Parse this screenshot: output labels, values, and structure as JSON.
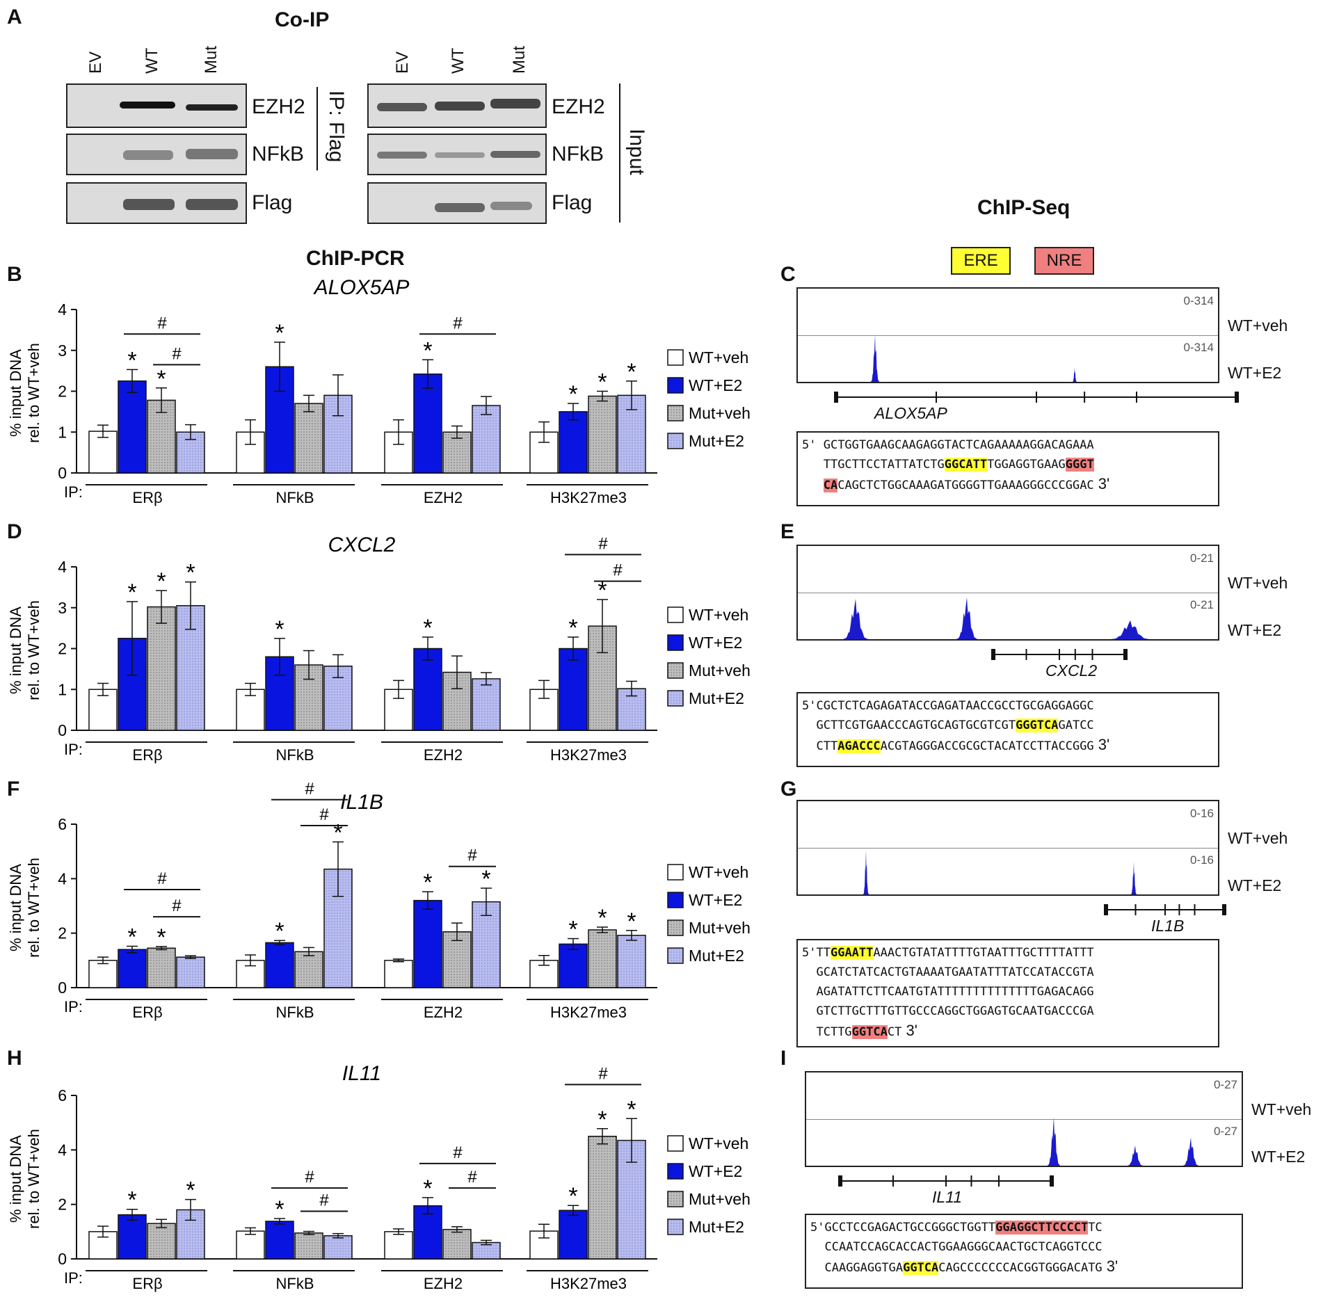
{
  "panel_letters": [
    "A",
    "B",
    "C",
    "D",
    "E",
    "F",
    "G",
    "H",
    "I"
  ],
  "coip": {
    "title": "Co-IP",
    "lanes": [
      "EV",
      "WT",
      "Mut"
    ],
    "proteins": [
      "EZH2",
      "NFkB",
      "Flag"
    ],
    "ip_label": "IP: Flag",
    "input_label": "Input"
  },
  "chip_pcr_title": "ChIP-PCR",
  "chip_seq_title": "ChIP-Seq",
  "motif_key": {
    "ere": "ERE",
    "nre": "NRE"
  },
  "colors": {
    "wt_veh": "#ffffff",
    "wt_e2": "#0a14e0",
    "mut_veh": "#bdbdbd",
    "mut_e2": "#b8bcee",
    "peak": "#1a1acc",
    "ere": "#ffff33",
    "nre": "#f08080"
  },
  "legend": [
    "WT+veh",
    "WT+E2",
    "Mut+veh",
    "Mut+E2"
  ],
  "track_labels": {
    "veh": "WT+veh",
    "e2": "WT+E2"
  },
  "chart_data": [
    {
      "type": "bar",
      "gene": "ALOX5AP",
      "ylabel_1": "% input DNA",
      "ylabel_2": "rel. to WT+veh",
      "ylim": [
        0,
        4
      ],
      "yticks": [
        "0",
        "1",
        "2",
        "3",
        "4"
      ],
      "ip_prefix": "IP:",
      "categories": [
        "ERβ",
        "NFkB",
        "EZH2",
        "H3K27me3"
      ],
      "series": [
        {
          "name": "WT+veh",
          "values": [
            1.02,
            1.0,
            1.0,
            1.0
          ],
          "err": [
            0.15,
            0.3,
            0.3,
            0.25
          ]
        },
        {
          "name": "WT+E2",
          "values": [
            2.25,
            2.6,
            2.42,
            1.5
          ],
          "err": [
            0.28,
            0.6,
            0.35,
            0.2
          ]
        },
        {
          "name": "Mut+veh",
          "values": [
            1.78,
            1.7,
            1.0,
            1.88
          ],
          "err": [
            0.3,
            0.2,
            0.15,
            0.12
          ]
        },
        {
          "name": "Mut+E2",
          "values": [
            1.0,
            1.9,
            1.65,
            1.9
          ],
          "err": [
            0.18,
            0.5,
            0.22,
            0.35
          ]
        }
      ],
      "stars": [
        [
          0,
          1
        ],
        [
          0,
          2
        ],
        [
          1,
          1
        ],
        [
          2,
          1
        ],
        [
          3,
          1
        ],
        [
          3,
          2
        ],
        [
          3,
          3
        ]
      ],
      "hashes": [
        {
          "g": 0,
          "a": 1,
          "b": 3,
          "v": 3.4
        },
        {
          "g": 0,
          "a": 2,
          "b": 3,
          "v": 2.65
        },
        {
          "g": 2,
          "a": 1,
          "b": 3,
          "v": 3.4
        }
      ],
      "star_sym": "*",
      "hash_sym": "#"
    },
    {
      "type": "bar",
      "gene": "CXCL2",
      "ylabel_1": "% input DNA",
      "ylabel_2": "rel. to WT+veh",
      "ylim": [
        0,
        4
      ],
      "yticks": [
        "0",
        "1",
        "2",
        "3",
        "4"
      ],
      "ip_prefix": "IP:",
      "categories": [
        "ERβ",
        "NFkB",
        "EZH2",
        "H3K27me3"
      ],
      "series": [
        {
          "name": "WT+veh",
          "values": [
            1.0,
            1.0,
            1.0,
            1.0
          ],
          "err": [
            0.15,
            0.15,
            0.22,
            0.22
          ]
        },
        {
          "name": "WT+E2",
          "values": [
            2.25,
            1.8,
            2.0,
            2.0
          ],
          "err": [
            0.9,
            0.45,
            0.28,
            0.28
          ]
        },
        {
          "name": "Mut+veh",
          "values": [
            3.02,
            1.6,
            1.42,
            2.55
          ],
          "err": [
            0.4,
            0.35,
            0.4,
            0.65
          ]
        },
        {
          "name": "Mut+E2",
          "values": [
            3.05,
            1.57,
            1.26,
            1.02
          ],
          "err": [
            0.58,
            0.28,
            0.15,
            0.18
          ]
        }
      ],
      "stars": [
        [
          0,
          1
        ],
        [
          0,
          2
        ],
        [
          0,
          3
        ],
        [
          1,
          1
        ],
        [
          2,
          1
        ],
        [
          3,
          1
        ],
        [
          3,
          2
        ]
      ],
      "hashes": [
        {
          "g": 3,
          "a": 1,
          "b": 3,
          "v": 4.3
        },
        {
          "g": 3,
          "a": 2,
          "b": 3,
          "v": 3.65
        }
      ],
      "star_sym": "*",
      "hash_sym": "#"
    },
    {
      "type": "bar",
      "gene": "IL1B",
      "ylabel_1": "% input DNA",
      "ylabel_2": "rel. to WT+veh",
      "ylim": [
        0,
        6
      ],
      "yticks": [
        "0",
        "2",
        "4",
        "6"
      ],
      "ip_prefix": "IP:",
      "categories": [
        "ERβ",
        "NFkB",
        "EZH2",
        "H3K27me3"
      ],
      "series": [
        {
          "name": "WT+veh",
          "values": [
            1.0,
            1.0,
            1.0,
            1.0
          ],
          "err": [
            0.12,
            0.2,
            0.05,
            0.18
          ]
        },
        {
          "name": "WT+E2",
          "values": [
            1.4,
            1.65,
            3.2,
            1.6
          ],
          "err": [
            0.12,
            0.08,
            0.32,
            0.2
          ]
        },
        {
          "name": "Mut+veh",
          "values": [
            1.45,
            1.32,
            2.05,
            2.12
          ],
          "err": [
            0.06,
            0.15,
            0.32,
            0.1
          ]
        },
        {
          "name": "Mut+E2",
          "values": [
            1.12,
            4.35,
            3.15,
            1.92
          ],
          "err": [
            0.05,
            1.0,
            0.5,
            0.18
          ]
        }
      ],
      "stars": [
        [
          0,
          1
        ],
        [
          0,
          2
        ],
        [
          1,
          1
        ],
        [
          1,
          3
        ],
        [
          2,
          1
        ],
        [
          2,
          3
        ],
        [
          3,
          1
        ],
        [
          3,
          2
        ],
        [
          3,
          3
        ]
      ],
      "hashes": [
        {
          "g": 0,
          "a": 1,
          "b": 3,
          "v": 3.6
        },
        {
          "g": 0,
          "a": 2,
          "b": 3,
          "v": 2.6
        },
        {
          "g": 1,
          "a": 1,
          "b": 3,
          "v": 6.9
        },
        {
          "g": 1,
          "a": 2,
          "b": 3,
          "v": 5.95
        },
        {
          "g": 2,
          "a": 2,
          "b": 3,
          "v": 4.45
        }
      ],
      "star_sym": "*",
      "hash_sym": "#"
    },
    {
      "type": "bar",
      "gene": "IL11",
      "ylabel_1": "% input DNA",
      "ylabel_2": "rel. to WT+veh",
      "ylim": [
        0,
        6
      ],
      "yticks": [
        "0",
        "2",
        "4",
        "6"
      ],
      "ip_prefix": "IP:",
      "categories": [
        "ERβ",
        "NFkB",
        "EZH2",
        "H3K27me3"
      ],
      "series": [
        {
          "name": "WT+veh",
          "values": [
            1.0,
            1.02,
            1.0,
            1.02
          ],
          "err": [
            0.2,
            0.12,
            0.1,
            0.25
          ]
        },
        {
          "name": "WT+E2",
          "values": [
            1.62,
            1.38,
            1.95,
            1.78
          ],
          "err": [
            0.2,
            0.1,
            0.3,
            0.18
          ]
        },
        {
          "name": "Mut+veh",
          "values": [
            1.3,
            0.95,
            1.08,
            4.5
          ],
          "err": [
            0.15,
            0.06,
            0.1,
            0.28
          ]
        },
        {
          "name": "Mut+E2",
          "values": [
            1.8,
            0.85,
            0.6,
            4.35
          ],
          "err": [
            0.38,
            0.08,
            0.08,
            0.8
          ]
        }
      ],
      "stars": [
        [
          0,
          1
        ],
        [
          0,
          3
        ],
        [
          1,
          1
        ],
        [
          2,
          1
        ],
        [
          3,
          1
        ],
        [
          3,
          2
        ],
        [
          3,
          3
        ]
      ],
      "hashes": [
        {
          "g": 1,
          "a": 1,
          "b": 3,
          "v": 2.6
        },
        {
          "g": 1,
          "a": 2,
          "b": 3,
          "v": 1.75
        },
        {
          "g": 2,
          "a": 1,
          "b": 3,
          "v": 3.5
        },
        {
          "g": 2,
          "a": 2,
          "b": 3,
          "v": 2.6
        },
        {
          "g": 3,
          "a": 1,
          "b": 3,
          "v": 6.4
        }
      ],
      "star_sym": "*",
      "hash_sym": "#"
    }
  ],
  "chipseq": [
    {
      "range": "0-314",
      "gene": "ALOX5AP",
      "seq": [
        [
          [
            "5' ",
            ""
          ],
          [
            "GCTGGTGAAGCAAGAGGTACTCAGAAAAAGGACAGAAA",
            ""
          ]
        ],
        [
          [
            "   ",
            ""
          ],
          [
            "TTGCTTCCTATTATCTG",
            ""
          ],
          [
            "GGCATT",
            "ere"
          ],
          [
            "TGGAGGTGAAG",
            ""
          ],
          [
            "GGGT",
            "nre"
          ]
        ],
        [
          [
            "   ",
            ""
          ],
          [
            "CA",
            "nre"
          ],
          [
            "CAGCTCTGGCAAAGATGGGGTTGAAAGGGCCCGGAC",
            ""
          ],
          [
            " 3'",
            "end"
          ]
        ]
      ]
    },
    {
      "range": "0-21",
      "gene": "CXCL2",
      "seq": [
        [
          [
            "5'",
            ""
          ],
          [
            "CGCTCTCAGAGATACCGAGATAACCGCCTGCGAGGAGGC",
            ""
          ]
        ],
        [
          [
            "  ",
            ""
          ],
          [
            "GCTTCGTGAACCCAGTGCAGTGCGTCGT",
            ""
          ],
          [
            "GGGTCA",
            "ere"
          ],
          [
            "GATCC",
            ""
          ]
        ],
        [
          [
            "  ",
            ""
          ],
          [
            "CTT",
            ""
          ],
          [
            "AGACCC",
            "ere"
          ],
          [
            "ACGTAGGGACCGCGCTACATCCTTACCGGG",
            ""
          ],
          [
            " 3'",
            "end"
          ]
        ]
      ]
    },
    {
      "range": "0-16",
      "gene": "IL1B",
      "seq": [
        [
          [
            "5'",
            ""
          ],
          [
            "TT",
            ""
          ],
          [
            "GGAATT",
            "ere"
          ],
          [
            "AAACTGTATATTTTGTAATTTGCTTTTATTT",
            ""
          ]
        ],
        [
          [
            "  ",
            ""
          ],
          [
            "GCATCTATCACTGTAAAATGAATATTTATCCATACCGTA",
            ""
          ]
        ],
        [
          [
            "  ",
            ""
          ],
          [
            "AGATATTCTTCAATGTATTTTTTTTTTTTTTGAGACAGG",
            ""
          ]
        ],
        [
          [
            "  ",
            ""
          ],
          [
            "GTCTTGCTTTGTTGCCCAGGCTGGAGTGCAATGACCCGA",
            ""
          ]
        ],
        [
          [
            "  ",
            ""
          ],
          [
            "TCTTG",
            ""
          ],
          [
            "GGTCA",
            "nre"
          ],
          [
            "CT",
            ""
          ],
          [
            " 3'",
            "end"
          ]
        ]
      ]
    },
    {
      "range": "0-27",
      "gene": "IL11",
      "seq": [
        [
          [
            "5'",
            ""
          ],
          [
            "GCCTCCGAGACTGCCGGGCTGGTT",
            ""
          ],
          [
            "GGAGGCTTCCCCT",
            "nre"
          ],
          [
            "TC",
            ""
          ]
        ],
        [
          [
            "  ",
            ""
          ],
          [
            "CCAATCCAGCACCACTGGAAGGGCAACTGCTCAGGTCCC",
            ""
          ]
        ],
        [
          [
            "  ",
            ""
          ],
          [
            "CAAGGAGGTGA",
            ""
          ],
          [
            "GGTCA",
            "ere"
          ],
          [
            "CAGCCCCCCCACGGTGGGACATG",
            ""
          ],
          [
            " 3'",
            "end"
          ]
        ]
      ]
    }
  ]
}
